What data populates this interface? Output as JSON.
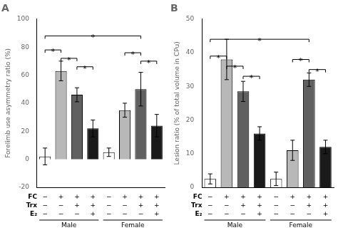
{
  "chart_data": [
    {
      "type": "bar",
      "title": "A",
      "ylabel": "Forelimb use asymmetry ratio (%)",
      "categories": [
        null,
        null,
        null,
        null,
        null,
        null,
        null,
        null
      ],
      "values": [
        2,
        63,
        46,
        22,
        5,
        35,
        50,
        24
      ],
      "errors": [
        6,
        7,
        5,
        6,
        3,
        5,
        12,
        8
      ],
      "colors": [
        "white",
        "#b8b8b8",
        "#606060",
        "#1a1a1a",
        "white",
        "#b8b8b8",
        "#606060",
        "#1a1a1a"
      ],
      "ylim": [
        -20,
        100
      ],
      "yticks": [
        -20,
        0,
        20,
        40,
        60,
        80,
        100
      ],
      "grid": false,
      "tick_labels": "y",
      "annotations": {
        "significance": [
          {
            "from": 0,
            "to": 1,
            "y": 78,
            "label": "*"
          },
          {
            "from": 1,
            "to": 2,
            "y": 72,
            "label": "*"
          },
          {
            "from": 2,
            "to": 3,
            "y": 66,
            "label": "*"
          },
          {
            "from": 0,
            "to": 6,
            "y": 88,
            "label": "*"
          },
          {
            "from": 5,
            "to": 6,
            "y": 76,
            "label": "*"
          },
          {
            "from": 6,
            "to": 7,
            "y": 70,
            "label": "*"
          }
        ],
        "rows": [
          {
            "label": "FC",
            "symbols": [
              "−",
              "+",
              "+",
              "+",
              "−",
              "+",
              "+",
              "+"
            ]
          },
          {
            "label": "Trx",
            "symbols": [
              "−",
              "−",
              "+",
              "+",
              "−",
              "−",
              "+",
              "+"
            ]
          },
          {
            "label": "E₂",
            "symbols": [
              "−",
              "−",
              "−",
              "+",
              "−",
              "−",
              "−",
              "+"
            ]
          }
        ],
        "groups": [
          {
            "label": "Male",
            "from": 0,
            "to": 3
          },
          {
            "label": "Female",
            "from": 4,
            "to": 7
          }
        ]
      }
    },
    {
      "type": "bar",
      "title": "B",
      "ylabel": "Lesion ratio (% of total volume in CPu)",
      "categories": [
        null,
        null,
        null,
        null,
        null,
        null,
        null,
        null
      ],
      "values": [
        2.5,
        38,
        28.5,
        16,
        2.5,
        11,
        32,
        12
      ],
      "errors": [
        1.5,
        6,
        3,
        2,
        2,
        3,
        2,
        2
      ],
      "colors": [
        "white",
        "#b8b8b8",
        "#606060",
        "#1a1a1a",
        "white",
        "#b8b8b8",
        "#606060",
        "#1a1a1a"
      ],
      "ylim": [
        0,
        50
      ],
      "yticks": [
        0,
        10,
        20,
        30,
        40,
        50
      ],
      "grid": false,
      "tick_labels": "y",
      "annotations": {
        "significance": [
          {
            "from": 0,
            "to": 1,
            "y": 39,
            "label": "*"
          },
          {
            "from": 1,
            "to": 2,
            "y": 36,
            "label": "*"
          },
          {
            "from": 2,
            "to": 3,
            "y": 33,
            "label": "*"
          },
          {
            "from": 0,
            "to": 6,
            "y": 44,
            "label": "*"
          },
          {
            "from": 5,
            "to": 6,
            "y": 38,
            "label": "*"
          },
          {
            "from": 6,
            "to": 7,
            "y": 35,
            "label": "*"
          }
        ],
        "rows": [
          {
            "label": "FC",
            "symbols": [
              "−",
              "+",
              "+",
              "+",
              "−",
              "+",
              "+",
              "+"
            ]
          },
          {
            "label": "Trx",
            "symbols": [
              "−",
              "−",
              "+",
              "+",
              "−",
              "−",
              "+",
              "+"
            ]
          },
          {
            "label": "E₂",
            "symbols": [
              "−",
              "−",
              "−",
              "+",
              "−",
              "−",
              "−",
              "+"
            ]
          }
        ],
        "groups": [
          {
            "label": "Male",
            "from": 0,
            "to": 3
          },
          {
            "label": "Female",
            "from": 4,
            "to": 7
          }
        ]
      }
    }
  ]
}
